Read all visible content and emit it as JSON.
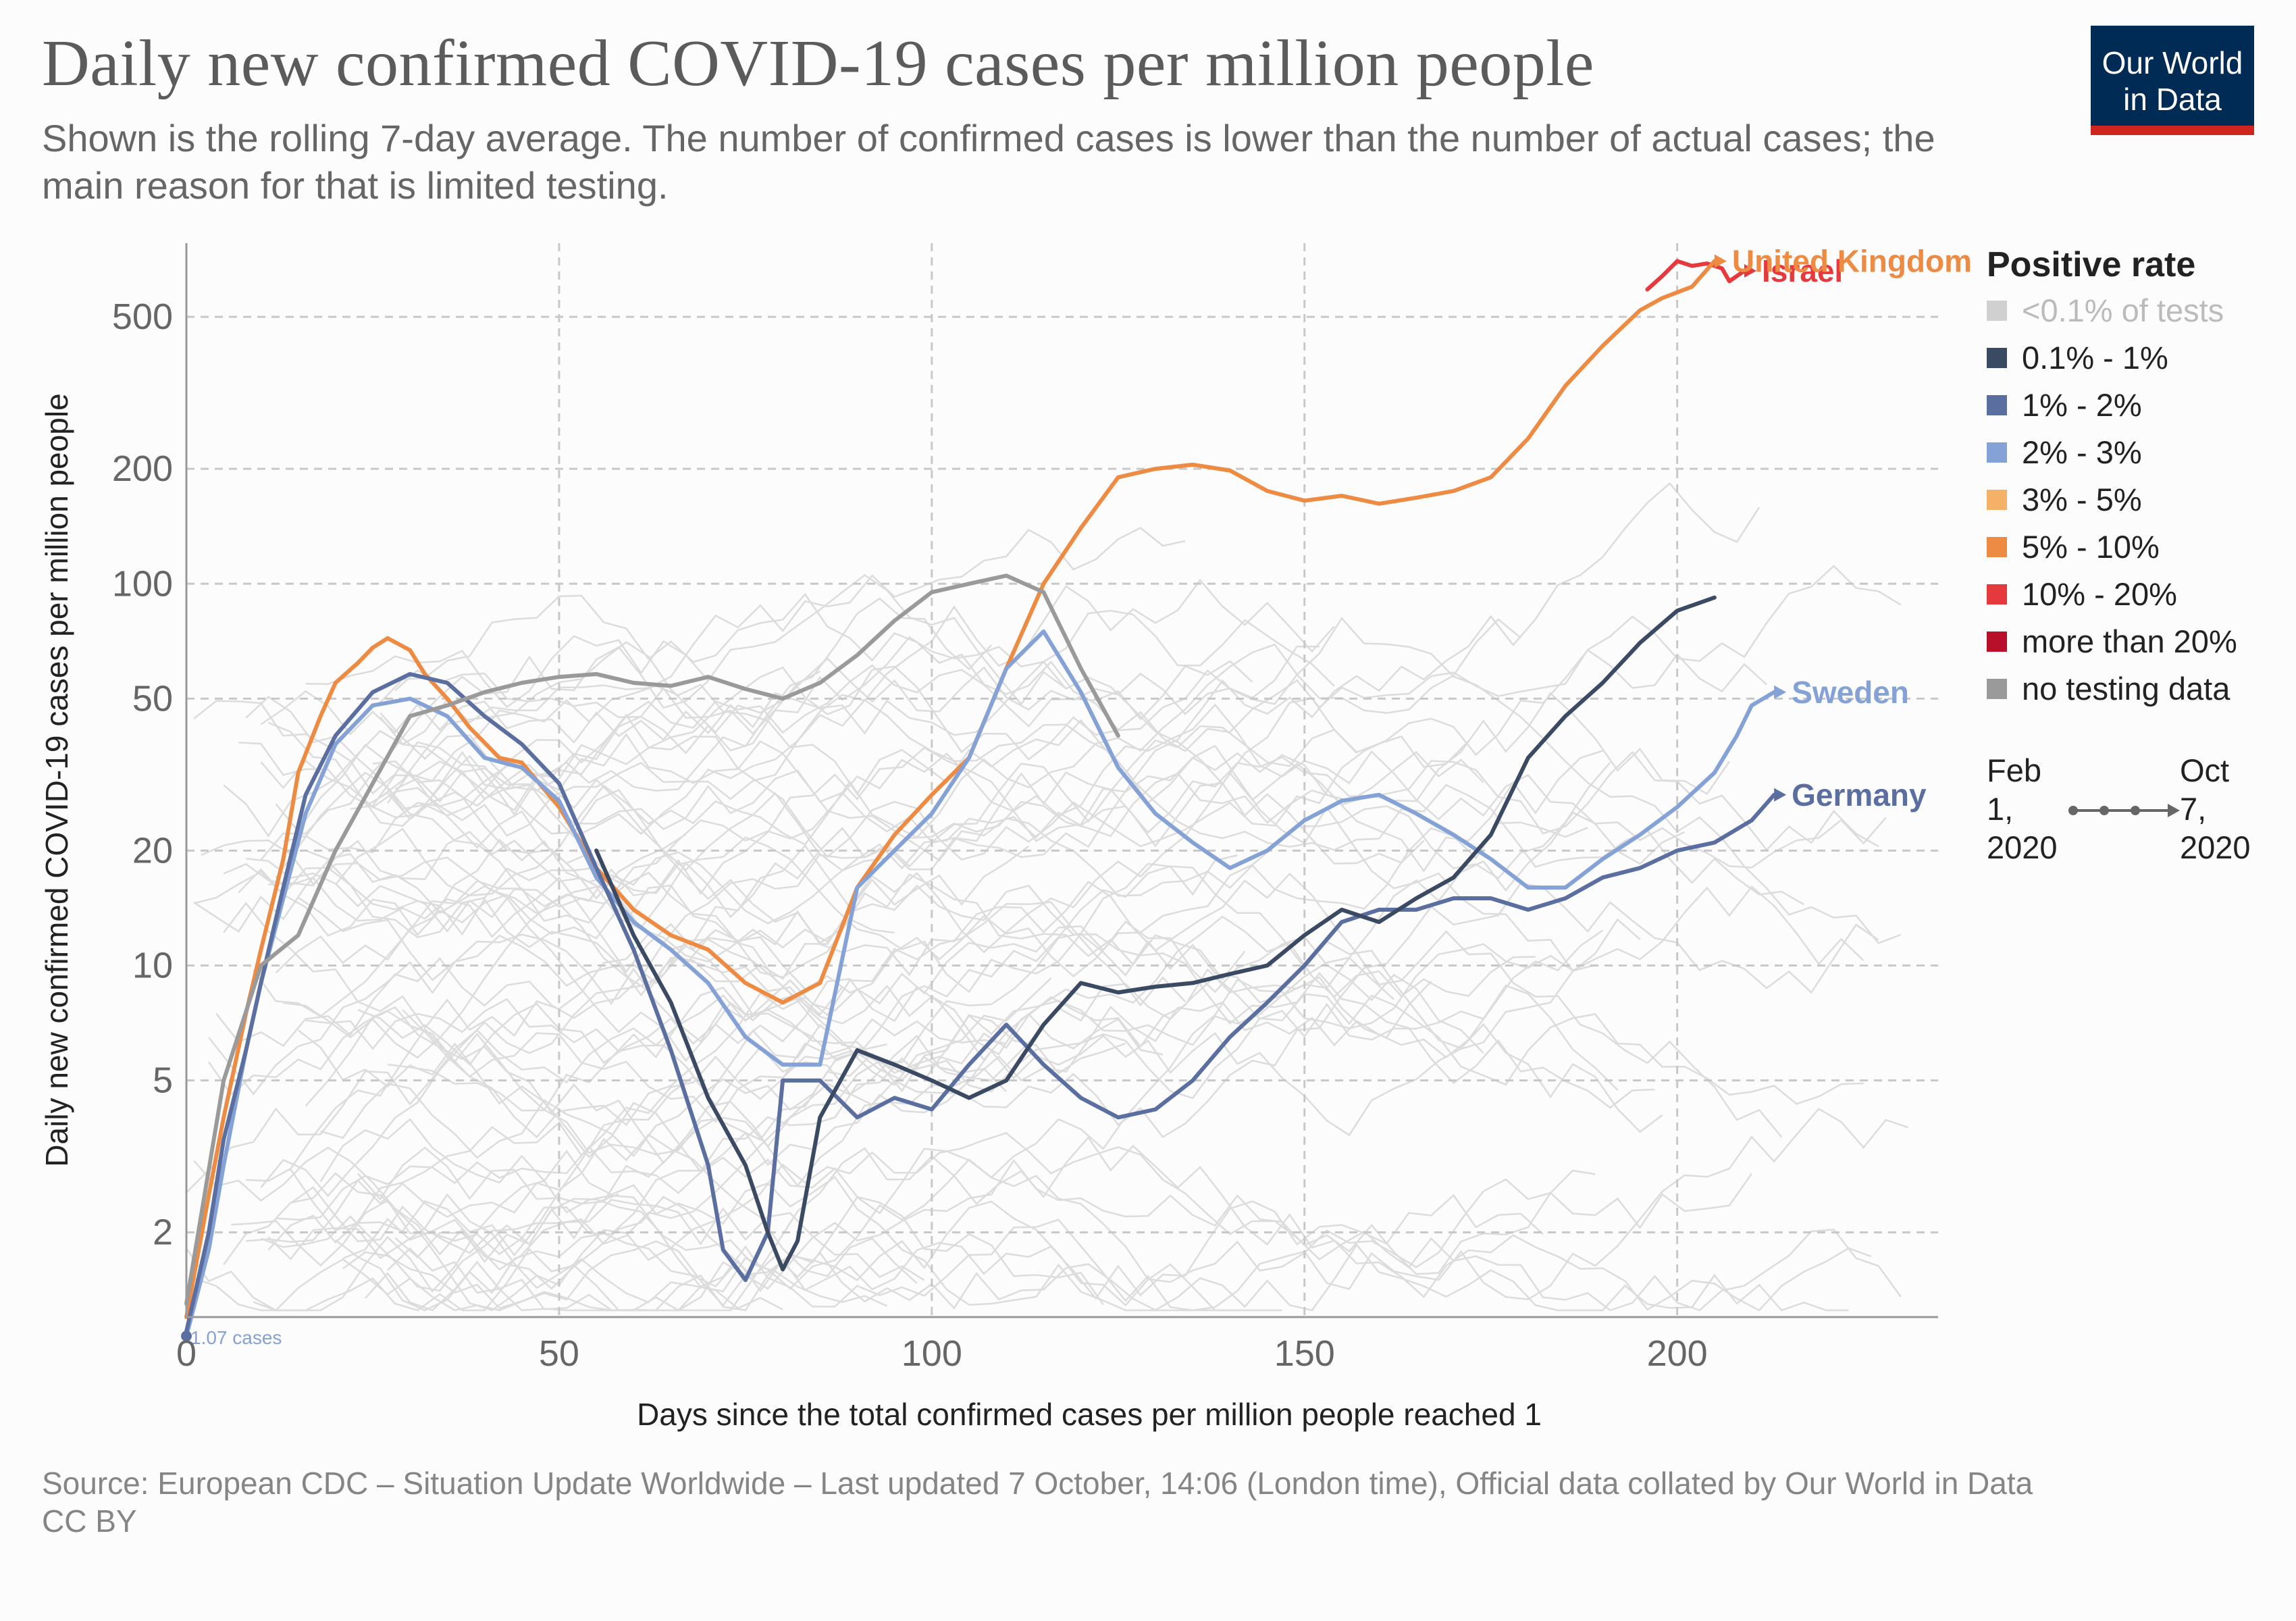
{
  "header": {
    "title": "Daily new confirmed COVID-19 cases per million people",
    "subtitle": "Shown is the rolling 7-day average. The number of confirmed cases is lower than the number of actual cases; the main reason for that is limited testing.",
    "logo_line1": "Our World",
    "logo_line2": "in Data"
  },
  "footer": {
    "source": "Source: European CDC – Situation Update Worldwide – Last updated 7 October, 14:06 (London time), Official data collated by Our World in Data",
    "license": "CC BY"
  },
  "legend": {
    "title": "Positive rate",
    "items": [
      {
        "label": "<0.1% of tests",
        "color": "#d0d0d0"
      },
      {
        "label": "0.1% - 1%",
        "color": "#3b4a63"
      },
      {
        "label": "1% - 2%",
        "color": "#5a6fa0"
      },
      {
        "label": "2% - 3%",
        "color": "#85a2d6"
      },
      {
        "label": "3% - 5%",
        "color": "#f6b168"
      },
      {
        "label": "5% - 10%",
        "color": "#ee8b43"
      },
      {
        "label": "10% - 20%",
        "color": "#e5393e"
      },
      {
        "label": "more than 20%",
        "color": "#b8102b"
      },
      {
        "label": "no testing data",
        "color": "#9a9a9a"
      }
    ]
  },
  "timeline": {
    "start": "Feb 1, 2020",
    "end": "Oct 7, 2020"
  },
  "chart_data": {
    "type": "line",
    "xlabel": "Days since the total confirmed cases per million people reached 1",
    "ylabel": "Daily new confirmed COVID-19 cases per million people",
    "x_scale": "linear",
    "y_scale": "log",
    "xlim": [
      0,
      235
    ],
    "ylim": [
      1.2,
      780
    ],
    "x_ticks": [
      0,
      50,
      100,
      150,
      200
    ],
    "y_ticks": [
      2,
      5,
      10,
      20,
      50,
      100,
      200,
      500
    ],
    "grid": true,
    "start_annotation": "1.07 cases",
    "series": [
      {
        "name": "Israel",
        "color": "#e5393e",
        "points": [
          [
            196,
            590
          ],
          [
            198,
            640
          ],
          [
            200,
            700
          ],
          [
            202,
            680
          ],
          [
            204,
            690
          ],
          [
            206,
            670
          ],
          [
            207,
            620
          ],
          [
            209,
            660
          ]
        ]
      },
      {
        "name": "United Kingdom",
        "color": "#ee8b43",
        "points": [
          [
            0,
            1.2
          ],
          [
            3,
            2.5
          ],
          [
            5,
            4
          ],
          [
            8,
            7.5
          ],
          [
            10,
            11
          ],
          [
            13,
            19
          ],
          [
            15,
            32
          ],
          [
            18,
            45
          ],
          [
            20,
            55
          ],
          [
            23,
            62
          ],
          [
            25,
            68
          ],
          [
            27,
            72
          ],
          [
            30,
            67
          ],
          [
            32,
            58
          ],
          [
            35,
            50
          ],
          [
            38,
            42
          ],
          [
            42,
            35
          ],
          [
            45,
            34
          ],
          [
            50,
            26
          ],
          [
            55,
            18
          ],
          [
            60,
            14
          ],
          [
            65,
            12
          ],
          [
            70,
            11
          ],
          [
            75,
            9
          ],
          [
            80,
            8
          ],
          [
            85,
            9
          ],
          [
            90,
            16
          ],
          [
            95,
            22
          ],
          [
            100,
            28
          ],
          [
            105,
            35
          ],
          [
            110,
            60
          ],
          [
            115,
            100
          ],
          [
            120,
            140
          ],
          [
            125,
            190
          ],
          [
            130,
            200
          ],
          [
            135,
            205
          ],
          [
            140,
            198
          ],
          [
            145,
            175
          ],
          [
            150,
            165
          ],
          [
            155,
            170
          ],
          [
            160,
            162
          ],
          [
            165,
            168
          ],
          [
            170,
            175
          ],
          [
            175,
            190
          ],
          [
            180,
            240
          ],
          [
            185,
            330
          ],
          [
            190,
            420
          ],
          [
            195,
            520
          ],
          [
            198,
            560
          ],
          [
            202,
            600
          ],
          [
            205,
            700
          ]
        ]
      },
      {
        "name": "Sweden",
        "color": "#85a2d6",
        "points": [
          [
            0,
            1.07
          ],
          [
            3,
            1.8
          ],
          [
            5,
            3
          ],
          [
            8,
            6
          ],
          [
            10,
            9
          ],
          [
            13,
            15
          ],
          [
            16,
            25
          ],
          [
            20,
            38
          ],
          [
            25,
            48
          ],
          [
            30,
            50
          ],
          [
            35,
            45
          ],
          [
            40,
            35
          ],
          [
            45,
            33
          ],
          [
            50,
            27
          ],
          [
            55,
            17
          ],
          [
            60,
            13
          ],
          [
            65,
            11
          ],
          [
            70,
            9
          ],
          [
            75,
            6.5
          ],
          [
            80,
            5.5
          ],
          [
            85,
            5.5
          ],
          [
            90,
            16
          ],
          [
            95,
            20
          ],
          [
            100,
            25
          ],
          [
            105,
            35
          ],
          [
            110,
            60
          ],
          [
            115,
            75
          ],
          [
            120,
            52
          ],
          [
            125,
            33
          ],
          [
            130,
            25
          ],
          [
            135,
            21
          ],
          [
            140,
            18
          ],
          [
            145,
            20
          ],
          [
            150,
            24
          ],
          [
            155,
            27
          ],
          [
            160,
            28
          ],
          [
            165,
            25
          ],
          [
            170,
            22
          ],
          [
            175,
            19
          ],
          [
            180,
            16
          ],
          [
            185,
            16
          ],
          [
            190,
            19
          ],
          [
            195,
            22
          ],
          [
            200,
            26
          ],
          [
            205,
            32
          ],
          [
            208,
            40
          ],
          [
            210,
            48
          ],
          [
            213,
            52
          ]
        ]
      },
      {
        "name": "Germany",
        "color": "#5a6fa0",
        "points": [
          [
            0,
            1.1
          ],
          [
            3,
            2
          ],
          [
            5,
            3.5
          ],
          [
            8,
            6
          ],
          [
            10,
            9
          ],
          [
            13,
            16
          ],
          [
            16,
            28
          ],
          [
            20,
            40
          ],
          [
            25,
            52
          ],
          [
            30,
            58
          ],
          [
            35,
            55
          ],
          [
            40,
            45
          ],
          [
            45,
            38
          ],
          [
            50,
            30
          ],
          [
            55,
            18
          ],
          [
            60,
            11
          ],
          [
            65,
            6
          ],
          [
            70,
            3
          ],
          [
            72,
            1.8
          ],
          [
            75,
            1.5
          ],
          [
            78,
            2
          ],
          [
            80,
            5
          ],
          [
            85,
            5
          ],
          [
            90,
            4
          ],
          [
            95,
            4.5
          ],
          [
            100,
            4.2
          ],
          [
            105,
            5.5
          ],
          [
            110,
            7
          ],
          [
            115,
            5.5
          ],
          [
            120,
            4.5
          ],
          [
            125,
            4
          ],
          [
            130,
            4.2
          ],
          [
            135,
            5
          ],
          [
            140,
            6.5
          ],
          [
            145,
            8
          ],
          [
            150,
            10
          ],
          [
            155,
            13
          ],
          [
            160,
            14
          ],
          [
            165,
            14
          ],
          [
            170,
            15
          ],
          [
            175,
            15
          ],
          [
            180,
            14
          ],
          [
            185,
            15
          ],
          [
            190,
            17
          ],
          [
            195,
            18
          ],
          [
            200,
            20
          ],
          [
            205,
            21
          ],
          [
            210,
            24
          ],
          [
            213,
            28
          ]
        ]
      },
      {
        "name": "",
        "color": "#9a9a9a",
        "points": [
          [
            0,
            1.3
          ],
          [
            5,
            5
          ],
          [
            10,
            10
          ],
          [
            15,
            12
          ],
          [
            20,
            20
          ],
          [
            25,
            30
          ],
          [
            30,
            45
          ],
          [
            35,
            48
          ],
          [
            40,
            52
          ],
          [
            45,
            55
          ],
          [
            50,
            57
          ],
          [
            55,
            58
          ],
          [
            60,
            55
          ],
          [
            65,
            54
          ],
          [
            70,
            57
          ],
          [
            75,
            53
          ],
          [
            80,
            50
          ],
          [
            85,
            55
          ],
          [
            90,
            65
          ],
          [
            95,
            80
          ],
          [
            100,
            95
          ],
          [
            105,
            100
          ],
          [
            110,
            105
          ],
          [
            115,
            95
          ],
          [
            120,
            60
          ],
          [
            125,
            40
          ]
        ]
      },
      {
        "name": "",
        "color": "#3b4a63",
        "points": [
          [
            55,
            20
          ],
          [
            60,
            12
          ],
          [
            65,
            8
          ],
          [
            70,
            4.5
          ],
          [
            75,
            3
          ],
          [
            78,
            2
          ],
          [
            80,
            1.6
          ],
          [
            82,
            1.9
          ],
          [
            85,
            4
          ],
          [
            90,
            6
          ],
          [
            95,
            5.5
          ],
          [
            100,
            5
          ],
          [
            105,
            4.5
          ],
          [
            110,
            5
          ],
          [
            115,
            7
          ],
          [
            120,
            9
          ],
          [
            125,
            8.5
          ],
          [
            130,
            8.8
          ],
          [
            135,
            9
          ],
          [
            140,
            9.5
          ],
          [
            145,
            10
          ],
          [
            150,
            12
          ],
          [
            155,
            14
          ],
          [
            160,
            13
          ],
          [
            165,
            15
          ],
          [
            170,
            17
          ],
          [
            175,
            22
          ],
          [
            180,
            35
          ],
          [
            185,
            45
          ],
          [
            190,
            55
          ],
          [
            195,
            70
          ],
          [
            200,
            85
          ],
          [
            205,
            92
          ]
        ]
      }
    ]
  }
}
